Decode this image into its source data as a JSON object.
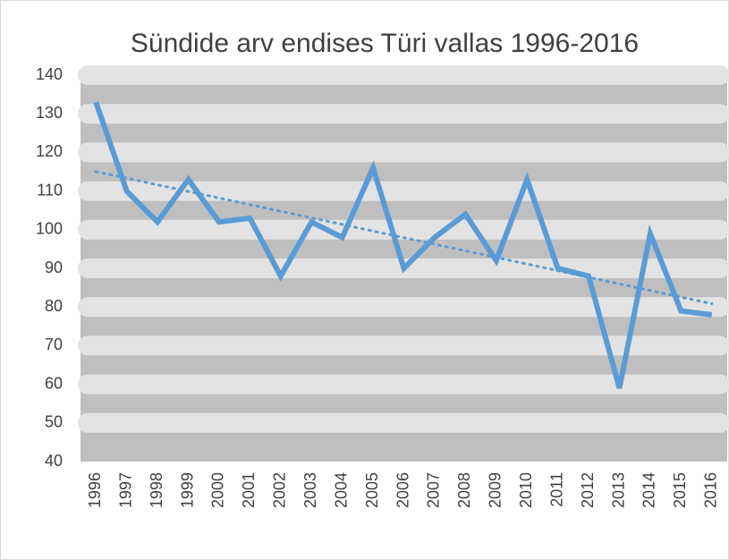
{
  "chart_data": {
    "type": "line",
    "title": "Sündide arv endises Türi vallas 1996-2016",
    "categories": [
      "1996",
      "1997",
      "1998",
      "1999",
      "2000",
      "2001",
      "2002",
      "2003",
      "2004",
      "2005",
      "2006",
      "2007",
      "2008",
      "2009",
      "2010",
      "2011",
      "2012",
      "2013",
      "2014",
      "2015",
      "2016"
    ],
    "series": [
      {
        "name": "Sündide arv",
        "color": "#5b9bd5",
        "values": [
          133,
          110,
          102,
          113,
          102,
          103,
          88,
          102,
          98,
          116,
          90,
          98,
          104,
          92,
          113,
          90,
          88,
          59,
          99,
          79,
          78
        ]
      }
    ],
    "trendline": "linear",
    "ylim": [
      40,
      140
    ],
    "yticks": [
      40,
      50,
      60,
      70,
      80,
      90,
      100,
      110,
      120,
      130,
      140
    ],
    "grid": true
  }
}
